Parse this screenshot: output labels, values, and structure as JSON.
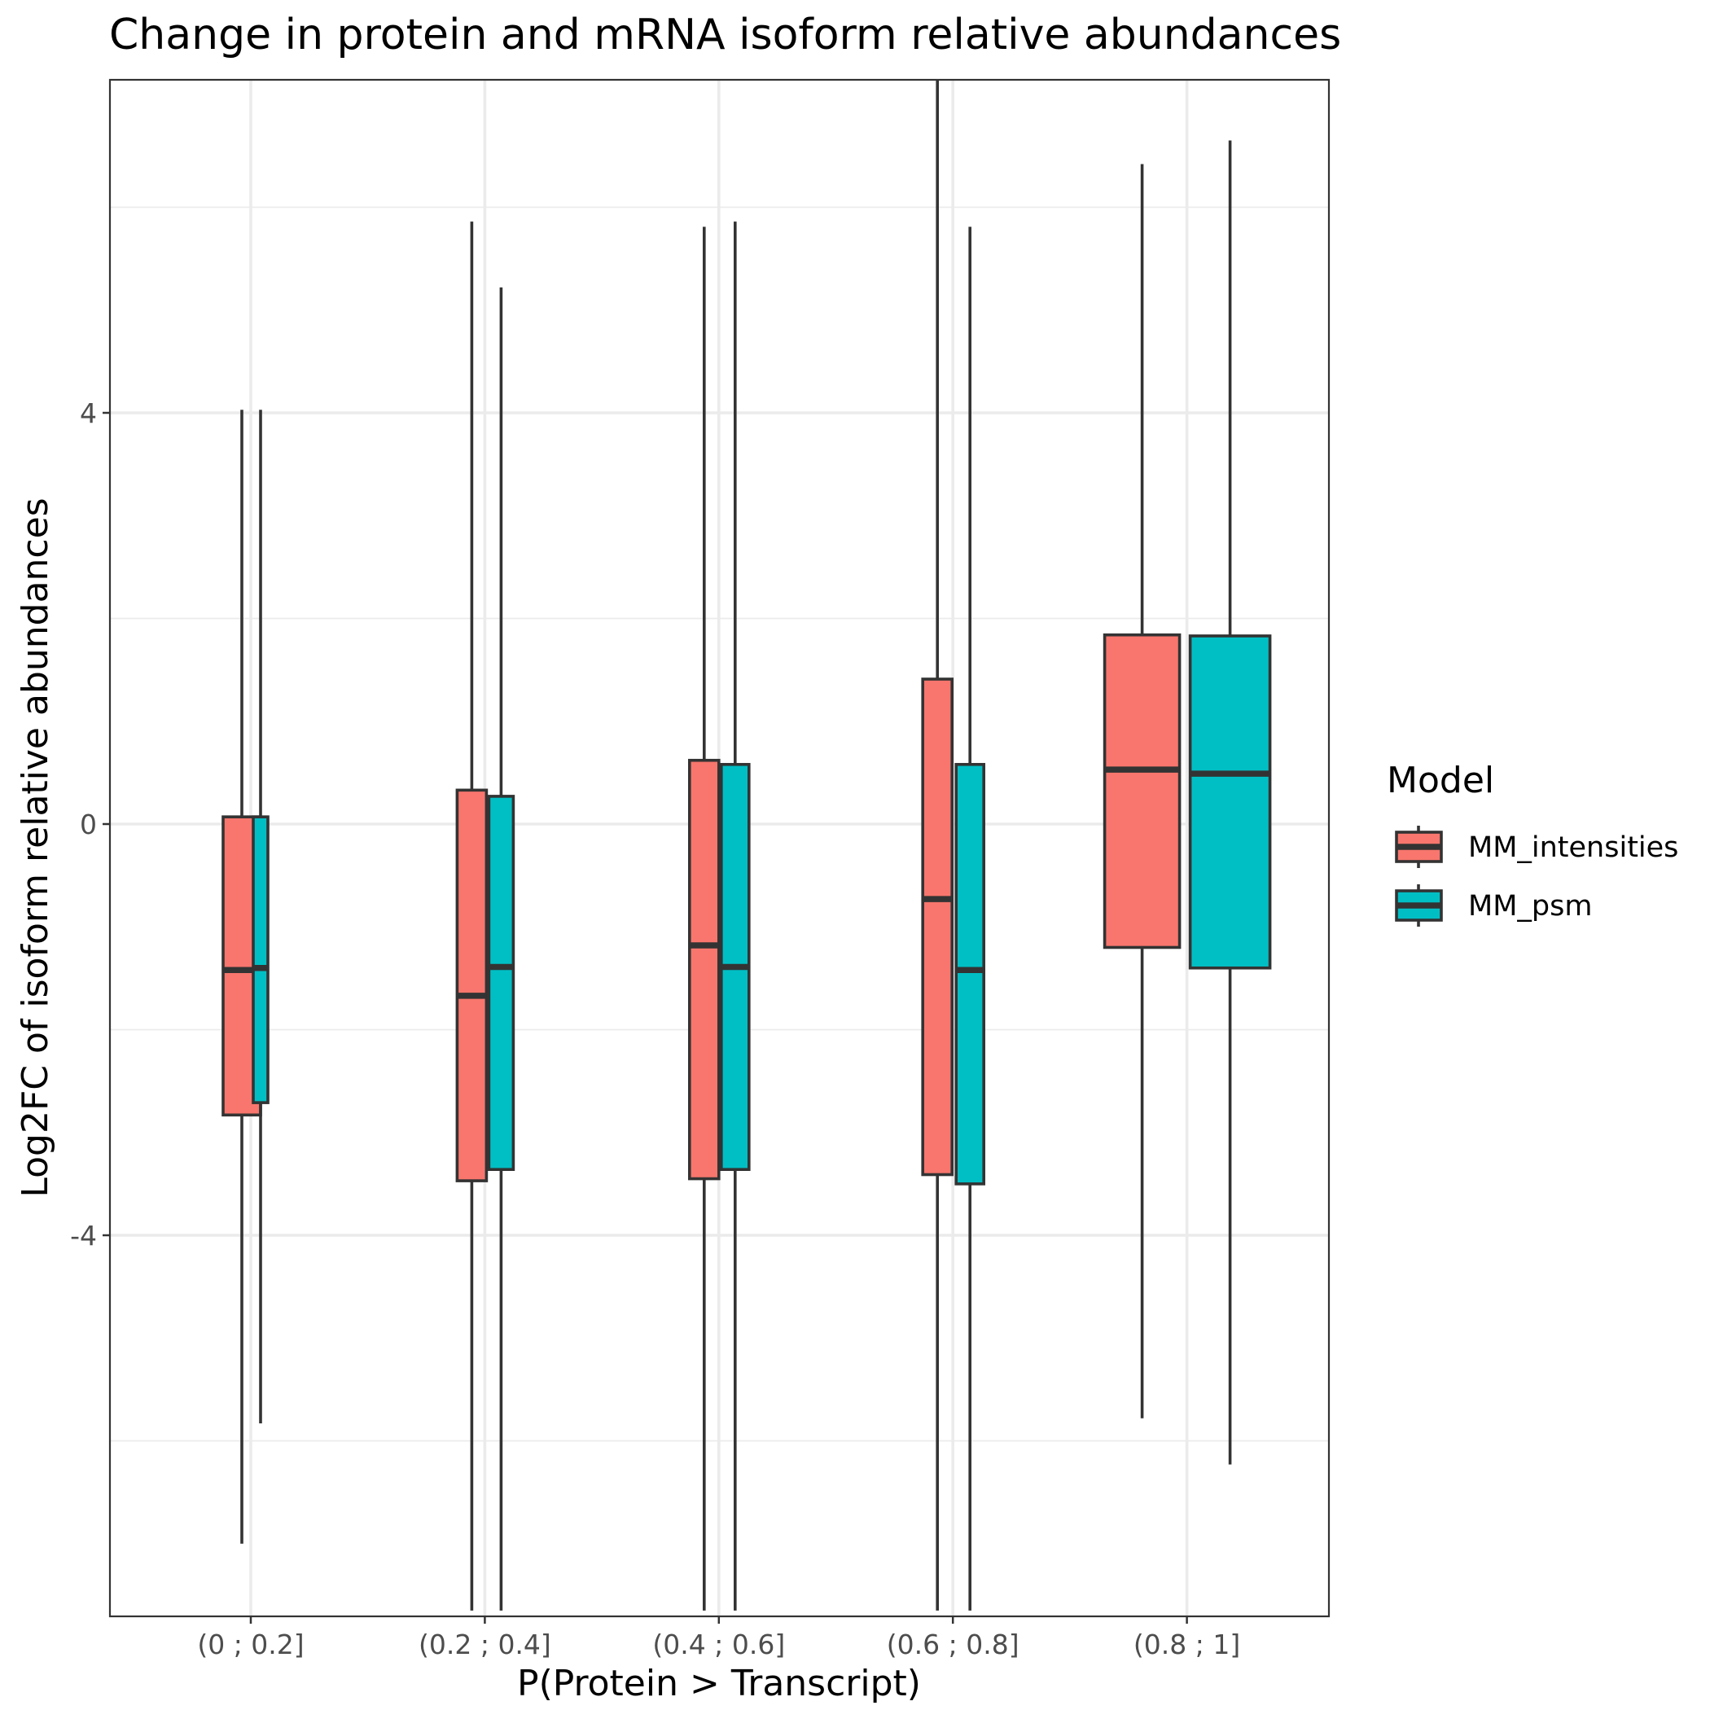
{
  "chart_data": {
    "type": "boxplot",
    "title": "Change in protein and mRNA isoform relative abundances",
    "xlabel": "P(Protein > Transcript)",
    "ylabel": "Log2FC of isoform relative abundances",
    "categories": [
      "(0 ; 0.2]",
      "(0.2 ; 0.4]",
      "(0.4 ; 0.6]",
      "(0.6 ; 0.8]",
      "(0.8 ; 1]"
    ],
    "yticks": [
      4,
      0,
      -4
    ],
    "ytick_labels": [
      "4",
      "0",
      "-4"
    ],
    "ylim": [
      -7.65,
      7.3
    ],
    "grid": true,
    "legend": {
      "title": "Model",
      "position": "right",
      "entries": [
        "MM_intensities",
        "MM_psm"
      ]
    },
    "series": [
      {
        "name": "MM_intensities",
        "color": "#F8766D",
        "boxes": [
          {
            "category": "(0 ; 0.2]",
            "lower_whisker": -7.0,
            "q1": -2.83,
            "median": -1.42,
            "q3": 0.07,
            "upper_whisker": 4.03
          },
          {
            "category": "(0.2 ; 0.4]",
            "lower_whisker": -7.65,
            "q1": -3.47,
            "median": -1.67,
            "q3": 0.33,
            "upper_whisker": 5.86
          },
          {
            "category": "(0.4 ; 0.6]",
            "lower_whisker": -7.65,
            "q1": -3.45,
            "median": -1.18,
            "q3": 0.62,
            "upper_whisker": 5.81
          },
          {
            "category": "(0.6 ; 0.8]",
            "lower_whisker": -7.65,
            "q1": -3.41,
            "median": -0.73,
            "q3": 1.41,
            "upper_whisker": 7.3
          },
          {
            "category": "(0.8 ; 1]",
            "lower_whisker": -5.78,
            "q1": -1.2,
            "median": 0.53,
            "q3": 1.84,
            "upper_whisker": 6.42
          }
        ]
      },
      {
        "name": "MM_psm",
        "color": "#00BFC4",
        "boxes": [
          {
            "category": "(0 ; 0.2]",
            "lower_whisker": -5.83,
            "q1": -2.71,
            "median": -1.4,
            "q3": 0.07,
            "upper_whisker": 4.03
          },
          {
            "category": "(0.2 ; 0.4]",
            "lower_whisker": -7.65,
            "q1": -3.36,
            "median": -1.39,
            "q3": 0.27,
            "upper_whisker": 5.22
          },
          {
            "category": "(0.4 ; 0.6]",
            "lower_whisker": -7.65,
            "q1": -3.36,
            "median": -1.39,
            "q3": 0.58,
            "upper_whisker": 5.86
          },
          {
            "category": "(0.6 ; 0.8]",
            "lower_whisker": -7.65,
            "q1": -3.5,
            "median": -1.42,
            "q3": 0.58,
            "upper_whisker": 5.81
          },
          {
            "category": "(0.8 ; 1]",
            "lower_whisker": -6.23,
            "q1": -1.4,
            "median": 0.49,
            "q3": 1.83,
            "upper_whisker": 6.65
          }
        ]
      }
    ]
  }
}
